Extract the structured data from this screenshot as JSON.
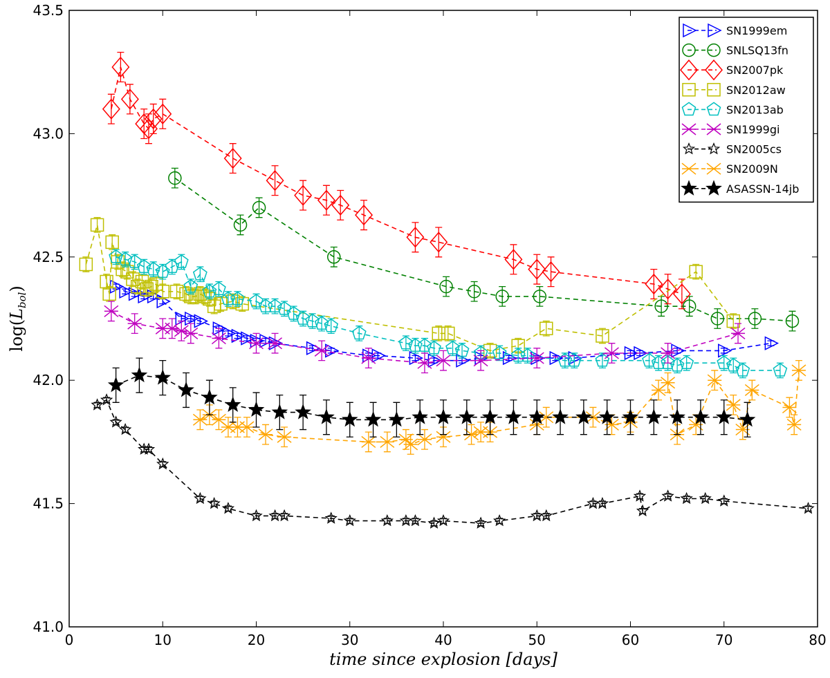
{
  "chart_data": {
    "type": "scatter",
    "title": "",
    "xlabel": "time since explosion [days]",
    "ylabel": "log(L_bol)",
    "ylabel_main": "log(",
    "ylabel_sub_L": "L",
    "ylabel_sub": "bol",
    "ylabel_close": ")",
    "xlim": [
      0,
      80
    ],
    "ylim": [
      41.0,
      43.5
    ],
    "xticks": [
      "0",
      "10",
      "20",
      "30",
      "40",
      "50",
      "60",
      "70",
      "80"
    ],
    "yticks": [
      "41.0",
      "41.5",
      "42.0",
      "42.5",
      "43.0",
      "43.5"
    ],
    "legend_position": "top-right",
    "series": [
      {
        "name": "SN1999em",
        "color": "#0000ff",
        "marker": "triangle-right",
        "x": [
          5,
          6,
          7,
          8,
          9,
          10,
          12,
          13,
          14,
          16,
          17,
          18,
          19,
          20,
          21,
          22,
          26,
          28,
          32,
          33,
          37,
          39,
          42,
          44,
          47,
          50,
          52,
          54,
          60,
          61,
          65,
          70,
          75
        ],
        "y": [
          42.38,
          42.36,
          42.35,
          42.34,
          42.34,
          42.32,
          42.25,
          42.25,
          42.24,
          42.21,
          42.19,
          42.18,
          42.17,
          42.16,
          42.16,
          42.15,
          42.13,
          42.12,
          42.1,
          42.1,
          42.09,
          42.08,
          42.08,
          42.09,
          42.09,
          42.09,
          42.09,
          42.09,
          42.11,
          42.11,
          42.12,
          42.12,
          42.15
        ],
        "err": [
          0.01,
          0.01,
          0.01,
          0.01,
          0.01,
          0.01,
          0.01,
          0.01,
          0.01,
          0.01,
          0.01,
          0.01,
          0.01,
          0.01,
          0.01,
          0.01,
          0.01,
          0.01,
          0.01,
          0.01,
          0.01,
          0.01,
          0.01,
          0.01,
          0.01,
          0.01,
          0.01,
          0.01,
          0.01,
          0.01,
          0.01,
          0.01,
          0.01
        ]
      },
      {
        "name": "SNLSQ13fn",
        "color": "#008000",
        "marker": "circle",
        "x": [
          11.3,
          18.3,
          20.3,
          28.3,
          40.3,
          43.3,
          46.3,
          50.3,
          63.3,
          66.3,
          69.3,
          73.3,
          77.3
        ],
        "y": [
          42.82,
          42.63,
          42.7,
          42.5,
          42.38,
          42.36,
          42.34,
          42.34,
          42.3,
          42.3,
          42.25,
          42.25,
          42.24
        ],
        "err": [
          0.04,
          0.04,
          0.04,
          0.04,
          0.04,
          0.04,
          0.04,
          0.04,
          0.04,
          0.04,
          0.04,
          0.04,
          0.04
        ]
      },
      {
        "name": "SN2007pk",
        "color": "#ff0000",
        "marker": "diamond",
        "x": [
          4.5,
          5.5,
          6.5,
          8.0,
          8.5,
          9.0,
          10.0,
          17.5,
          22.0,
          25.0,
          27.5,
          29.0,
          31.5,
          37.0,
          39.5,
          47.5,
          50.0,
          51.5,
          62.5,
          64.0,
          65.5
        ],
        "y": [
          43.1,
          43.27,
          43.14,
          43.04,
          43.02,
          43.06,
          43.08,
          42.9,
          42.81,
          42.75,
          42.73,
          42.71,
          42.67,
          42.58,
          42.56,
          42.49,
          42.45,
          42.44,
          42.39,
          42.37,
          42.35
        ],
        "err": [
          0.06,
          0.06,
          0.06,
          0.06,
          0.06,
          0.06,
          0.06,
          0.06,
          0.06,
          0.06,
          0.06,
          0.06,
          0.06,
          0.06,
          0.06,
          0.06,
          0.06,
          0.06,
          0.06,
          0.06,
          0.06
        ]
      },
      {
        "name": "SN2012aw",
        "color": "#bfbf00",
        "marker": "square",
        "x": [
          1.8,
          3.0,
          4.0,
          4.3,
          4.6,
          5.2,
          5.7,
          6.2,
          6.8,
          7.3,
          7.8,
          8.3,
          8.8,
          9.3,
          10.0,
          11.5,
          12.5,
          13.0,
          13.5,
          14.0,
          14.5,
          15.0,
          15.5,
          16.2,
          17.5,
          18.5,
          39.5,
          40.5,
          45.0,
          48.0,
          51.0,
          57.0,
          67.0,
          71.0
        ],
        "y": [
          42.47,
          42.63,
          42.4,
          42.35,
          42.56,
          42.48,
          42.45,
          42.44,
          42.41,
          42.38,
          42.4,
          42.37,
          42.38,
          42.39,
          42.36,
          42.36,
          42.35,
          42.34,
          42.34,
          42.35,
          42.34,
          42.33,
          42.3,
          42.31,
          42.32,
          42.31,
          42.19,
          42.19,
          42.12,
          42.14,
          42.21,
          42.18,
          42.44,
          42.24
        ],
        "err": [
          0.03,
          0.03,
          0.03,
          0.03,
          0.03,
          0.03,
          0.03,
          0.03,
          0.03,
          0.03,
          0.03,
          0.03,
          0.03,
          0.03,
          0.03,
          0.03,
          0.03,
          0.03,
          0.03,
          0.03,
          0.03,
          0.03,
          0.03,
          0.03,
          0.03,
          0.03,
          0.03,
          0.03,
          0.03,
          0.03,
          0.03,
          0.03,
          0.03,
          0.03
        ]
      },
      {
        "name": "SN2013ab",
        "color": "#00bfbf",
        "marker": "pentagon",
        "x": [
          5,
          6,
          7,
          8,
          9,
          10,
          11,
          12,
          13,
          14,
          15,
          16,
          17,
          18,
          20,
          21,
          22,
          23,
          24,
          25,
          26,
          27,
          28,
          31,
          36,
          37,
          38,
          39,
          41,
          42,
          44,
          46,
          48,
          49,
          53,
          54,
          57,
          62,
          63,
          64,
          65,
          66,
          70,
          71,
          72,
          76
        ],
        "y": [
          42.5,
          42.49,
          42.48,
          42.46,
          42.45,
          42.44,
          42.46,
          42.48,
          42.38,
          42.43,
          42.36,
          42.37,
          42.33,
          42.33,
          42.32,
          42.3,
          42.3,
          42.29,
          42.27,
          42.25,
          42.24,
          42.23,
          42.22,
          42.19,
          42.15,
          42.14,
          42.14,
          42.13,
          42.13,
          42.12,
          42.11,
          42.11,
          42.1,
          42.1,
          42.08,
          42.08,
          42.08,
          42.08,
          42.07,
          42.07,
          42.06,
          42.07,
          42.07,
          42.06,
          42.04,
          42.04
        ],
        "err": [
          0.03,
          0.03,
          0.03,
          0.03,
          0.03,
          0.03,
          0.03,
          0.03,
          0.03,
          0.03,
          0.03,
          0.03,
          0.03,
          0.03,
          0.03,
          0.03,
          0.03,
          0.03,
          0.03,
          0.03,
          0.03,
          0.03,
          0.03,
          0.03,
          0.03,
          0.03,
          0.03,
          0.03,
          0.03,
          0.03,
          0.03,
          0.03,
          0.03,
          0.03,
          0.03,
          0.03,
          0.03,
          0.03,
          0.03,
          0.03,
          0.03,
          0.03,
          0.03,
          0.03,
          0.03,
          0.03
        ]
      },
      {
        "name": "SN1999gi",
        "color": "#bf00bf",
        "marker": "tri-cross",
        "x": [
          4.5,
          7,
          10,
          11,
          12,
          13,
          16,
          20,
          22,
          27,
          32,
          38,
          40,
          44,
          50,
          58,
          64,
          71.5
        ],
        "y": [
          42.28,
          42.23,
          42.21,
          42.21,
          42.2,
          42.19,
          42.17,
          42.15,
          42.15,
          42.12,
          42.09,
          42.07,
          42.08,
          42.08,
          42.09,
          42.11,
          42.11,
          42.19
        ],
        "err": [
          0.04,
          0.04,
          0.04,
          0.04,
          0.04,
          0.04,
          0.04,
          0.04,
          0.04,
          0.04,
          0.04,
          0.04,
          0.04,
          0.04,
          0.04,
          0.04,
          0.04,
          0.04
        ]
      },
      {
        "name": "SN2005cs",
        "color": "#000000",
        "marker": "star-open",
        "x": [
          3.0,
          4.0,
          5.0,
          6.0,
          8.0,
          8.5,
          10.0,
          14.0,
          15.5,
          17.0,
          20.0,
          22.0,
          23.0,
          28.0,
          30.0,
          34.0,
          36.0,
          37.0,
          39.0,
          40.0,
          44.0,
          46.0,
          50.0,
          51.0,
          56.0,
          57.0,
          61.0,
          61.3,
          64.0,
          66.0,
          68.0,
          70.0,
          79.0
        ],
        "y": [
          41.9,
          41.92,
          41.83,
          41.8,
          41.72,
          41.72,
          41.66,
          41.52,
          41.5,
          41.48,
          41.45,
          41.45,
          41.45,
          41.44,
          41.43,
          41.43,
          41.43,
          41.43,
          41.42,
          41.43,
          41.42,
          41.43,
          41.45,
          41.45,
          41.5,
          41.5,
          41.53,
          41.47,
          41.53,
          41.52,
          41.52,
          41.51,
          41.48
        ],
        "err": [
          0.01,
          0.01,
          0.01,
          0.01,
          0.01,
          0.01,
          0.01,
          0.01,
          0.01,
          0.01,
          0.01,
          0.01,
          0.01,
          0.01,
          0.01,
          0.01,
          0.01,
          0.01,
          0.01,
          0.01,
          0.01,
          0.01,
          0.01,
          0.01,
          0.01,
          0.01,
          0.01,
          0.01,
          0.01,
          0.01,
          0.01,
          0.01,
          0.01
        ]
      },
      {
        "name": "SN2009N",
        "color": "#ffa500",
        "marker": "tri-cross",
        "x": [
          14,
          15,
          16,
          17,
          18,
          19,
          21,
          23,
          32,
          34,
          36,
          36.5,
          38,
          40,
          43,
          44,
          45,
          50,
          51,
          56,
          58,
          60,
          63,
          64,
          65,
          67,
          69,
          71,
          72,
          73,
          77,
          77.5,
          78
        ],
        "y": [
          41.84,
          41.86,
          41.84,
          41.81,
          41.81,
          41.81,
          41.78,
          41.77,
          41.75,
          41.75,
          41.76,
          41.74,
          41.76,
          41.77,
          41.78,
          41.79,
          41.79,
          41.82,
          41.85,
          41.85,
          41.82,
          41.83,
          41.96,
          41.99,
          41.78,
          41.82,
          42.0,
          41.9,
          41.8,
          41.96,
          41.89,
          41.82,
          42.04
        ],
        "err": [
          0.04,
          0.04,
          0.04,
          0.04,
          0.04,
          0.04,
          0.04,
          0.04,
          0.04,
          0.04,
          0.04,
          0.04,
          0.04,
          0.04,
          0.04,
          0.04,
          0.04,
          0.04,
          0.04,
          0.04,
          0.04,
          0.04,
          0.04,
          0.04,
          0.04,
          0.04,
          0.04,
          0.04,
          0.04,
          0.04,
          0.04,
          0.04,
          0.04
        ]
      },
      {
        "name": "ASASSN-14jb",
        "color": "#000000",
        "marker": "star-filled",
        "x": [
          5.0,
          7.5,
          10.0,
          12.5,
          15.0,
          17.5,
          20.0,
          22.5,
          25.0,
          27.5,
          30.0,
          32.5,
          35.0,
          37.5,
          40.0,
          42.5,
          45.0,
          47.5,
          50.0,
          52.5,
          55.0,
          57.5,
          60.0,
          62.5,
          65.0,
          67.5,
          70.0,
          72.5
        ],
        "y": [
          41.98,
          42.02,
          42.01,
          41.96,
          41.93,
          41.9,
          41.88,
          41.87,
          41.87,
          41.85,
          41.84,
          41.84,
          41.84,
          41.85,
          41.85,
          41.85,
          41.85,
          41.85,
          41.85,
          41.85,
          41.85,
          41.85,
          41.85,
          41.85,
          41.85,
          41.85,
          41.85,
          41.84
        ],
        "err": [
          0.07,
          0.07,
          0.07,
          0.07,
          0.07,
          0.07,
          0.07,
          0.07,
          0.07,
          0.07,
          0.07,
          0.07,
          0.07,
          0.07,
          0.07,
          0.07,
          0.07,
          0.07,
          0.07,
          0.07,
          0.07,
          0.07,
          0.07,
          0.07,
          0.07,
          0.07,
          0.07,
          0.07
        ]
      }
    ]
  }
}
